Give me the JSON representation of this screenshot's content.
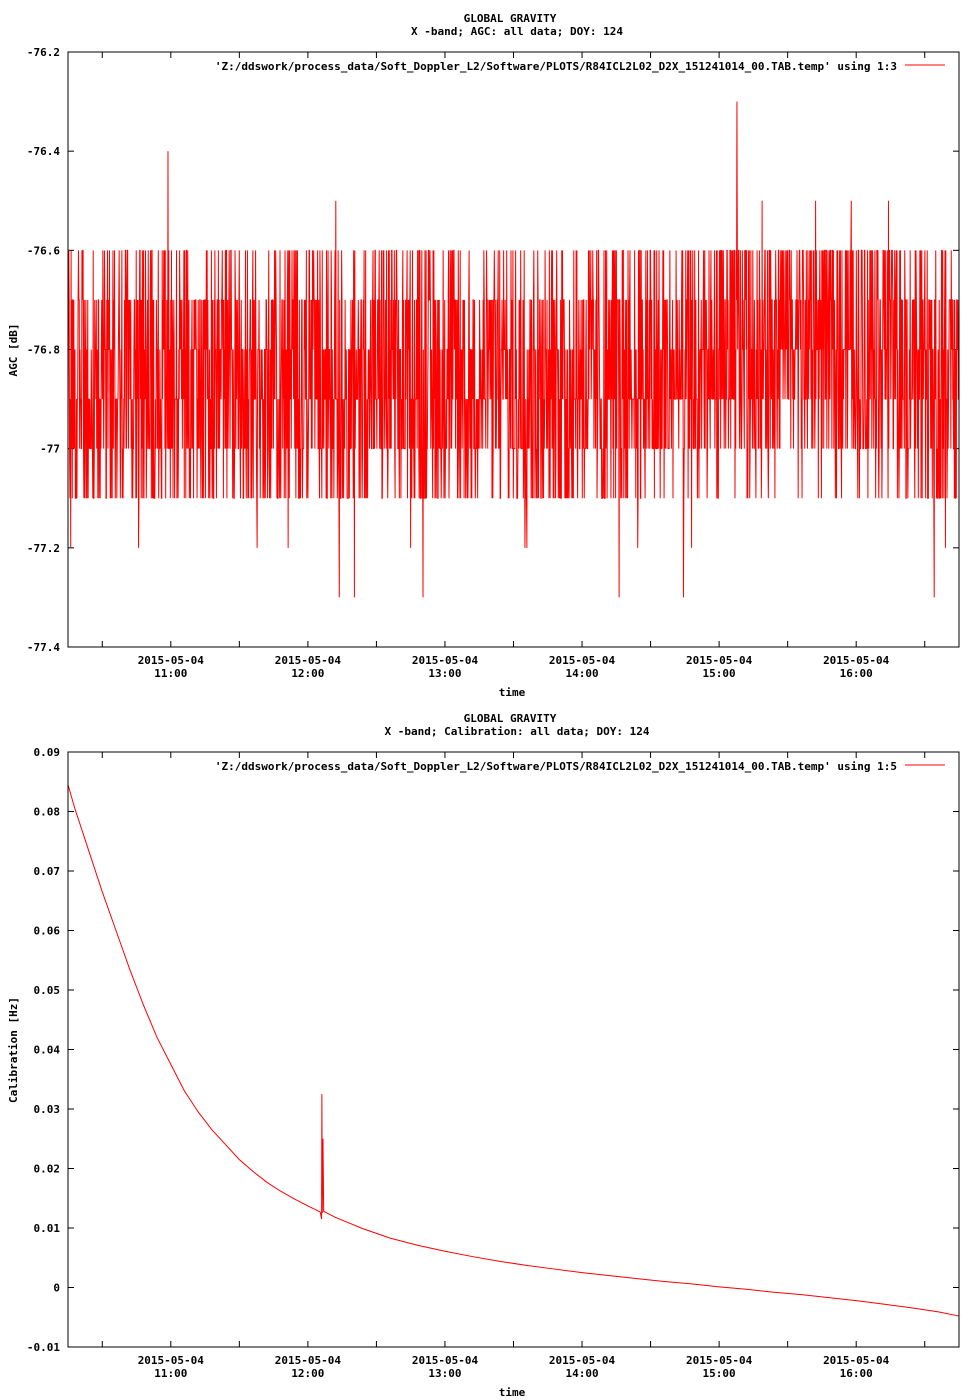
{
  "chart_data": [
    {
      "type": "line",
      "title": "GLOBAL GRAVITY",
      "subtitle": "X -band; AGC: all data; DOY: 124",
      "xlabel": "time",
      "ylabel": "AGC [dB]",
      "x_tick_dates": [
        "2015-05-04",
        "2015-05-04",
        "2015-05-04",
        "2015-05-04",
        "2015-05-04",
        "2015-05-04"
      ],
      "x_tick_times": [
        "11:00",
        "12:00",
        "13:00",
        "14:00",
        "15:00",
        "16:00"
      ],
      "x_range_hours": [
        10.25,
        16.75
      ],
      "ylim": [
        -77.4,
        -76.2
      ],
      "y_ticks": [
        -76.2,
        -76.4,
        -76.6,
        -76.8,
        -77,
        -77.2,
        -77.4
      ],
      "y_tick_labels": [
        "-76.2",
        "-76.4",
        "-76.6",
        "-76.8",
        "-77",
        "-77.2",
        "-77.4"
      ],
      "grid": false,
      "legend_position": "top-right",
      "series": [
        {
          "name": "'Z:/ddswork/process_data/Soft_Doppler_L2/Software/PLOTS/R84ICL2L02_D2X_151241014_00.TAB.temp' using 1:3",
          "color": "#ff0000",
          "quantization_step": 0.1,
          "base_range": [
            -77.1,
            -76.6
          ],
          "notable_points": [
            {
              "x": 10.98,
              "y": -76.4
            },
            {
              "x": 12.23,
              "y": -77.3
            },
            {
              "x": 12.34,
              "y": -77.3
            },
            {
              "x": 12.84,
              "y": -77.3
            },
            {
              "x": 14.27,
              "y": -77.3
            },
            {
              "x": 14.74,
              "y": -77.3
            },
            {
              "x": 15.13,
              "y": -76.3
            },
            {
              "x": 16.57,
              "y": -77.3
            },
            {
              "x": 10.27,
              "y": -77.2
            },
            {
              "x": 16.65,
              "y": -77.2
            }
          ]
        }
      ]
    },
    {
      "type": "line",
      "title": "GLOBAL GRAVITY",
      "subtitle": "X -band; Calibration: all data; DOY: 124",
      "xlabel": "time",
      "ylabel": "Calibration [Hz]",
      "x_tick_dates": [
        "2015-05-04",
        "2015-05-04",
        "2015-05-04",
        "2015-05-04",
        "2015-05-04",
        "2015-05-04"
      ],
      "x_tick_times": [
        "11:00",
        "12:00",
        "13:00",
        "14:00",
        "15:00",
        "16:00"
      ],
      "x_range_hours": [
        10.25,
        16.75
      ],
      "ylim": [
        -0.01,
        0.09
      ],
      "y_ticks": [
        0.09,
        0.08,
        0.07,
        0.06,
        0.05,
        0.04,
        0.03,
        0.02,
        0.01,
        0,
        -0.01
      ],
      "y_tick_labels": [
        "0.09",
        "0.08",
        "0.07",
        "0.06",
        "0.05",
        "0.04",
        "0.03",
        "0.02",
        "0.01",
        "0",
        "-0.01"
      ],
      "grid": false,
      "legend_position": "top-right",
      "series": [
        {
          "name": "'Z:/ddswork/process_data/Soft_Doppler_L2/Software/PLOTS/R84ICL2L02_D2X_151241014_00.TAB.temp' using 1:5",
          "color": "#ff0000",
          "points": [
            [
              10.25,
              0.0845
            ],
            [
              10.3,
              0.0805
            ],
            [
              10.4,
              0.0735
            ],
            [
              10.5,
              0.0665
            ],
            [
              10.6,
              0.06
            ],
            [
              10.7,
              0.0535
            ],
            [
              10.8,
              0.0475
            ],
            [
              10.9,
              0.042
            ],
            [
              11.0,
              0.0375
            ],
            [
              11.1,
              0.033
            ],
            [
              11.2,
              0.0295
            ],
            [
              11.3,
              0.0265
            ],
            [
              11.4,
              0.024
            ],
            [
              11.5,
              0.0215
            ],
            [
              11.6,
              0.0195
            ],
            [
              11.7,
              0.0177
            ],
            [
              11.8,
              0.0162
            ],
            [
              11.9,
              0.0149
            ],
            [
              12.0,
              0.0137
            ],
            [
              12.09,
              0.0127
            ],
            [
              12.1,
              0.0115
            ],
            [
              12.102,
              0.0325
            ],
            [
              12.105,
              0.0125
            ],
            [
              12.11,
              0.025
            ],
            [
              12.115,
              0.0128
            ],
            [
              12.2,
              0.0118
            ],
            [
              12.4,
              0.0099
            ],
            [
              12.6,
              0.0083
            ],
            [
              12.8,
              0.0071
            ],
            [
              13.0,
              0.0061
            ],
            [
              13.2,
              0.0052
            ],
            [
              13.4,
              0.0044
            ],
            [
              13.6,
              0.0037
            ],
            [
              13.8,
              0.0031
            ],
            [
              14.0,
              0.0025
            ],
            [
              14.2,
              0.002
            ],
            [
              14.4,
              0.0015
            ],
            [
              14.6,
              0.001
            ],
            [
              14.8,
              0.0006
            ],
            [
              15.0,
              0.0001
            ],
            [
              15.2,
              -0.0003
            ],
            [
              15.4,
              -0.0008
            ],
            [
              15.6,
              -0.0012
            ],
            [
              15.8,
              -0.0017
            ],
            [
              16.0,
              -0.0022
            ],
            [
              16.2,
              -0.0028
            ],
            [
              16.4,
              -0.0034
            ],
            [
              16.6,
              -0.0041
            ],
            [
              16.75,
              -0.0048
            ]
          ]
        }
      ]
    }
  ]
}
